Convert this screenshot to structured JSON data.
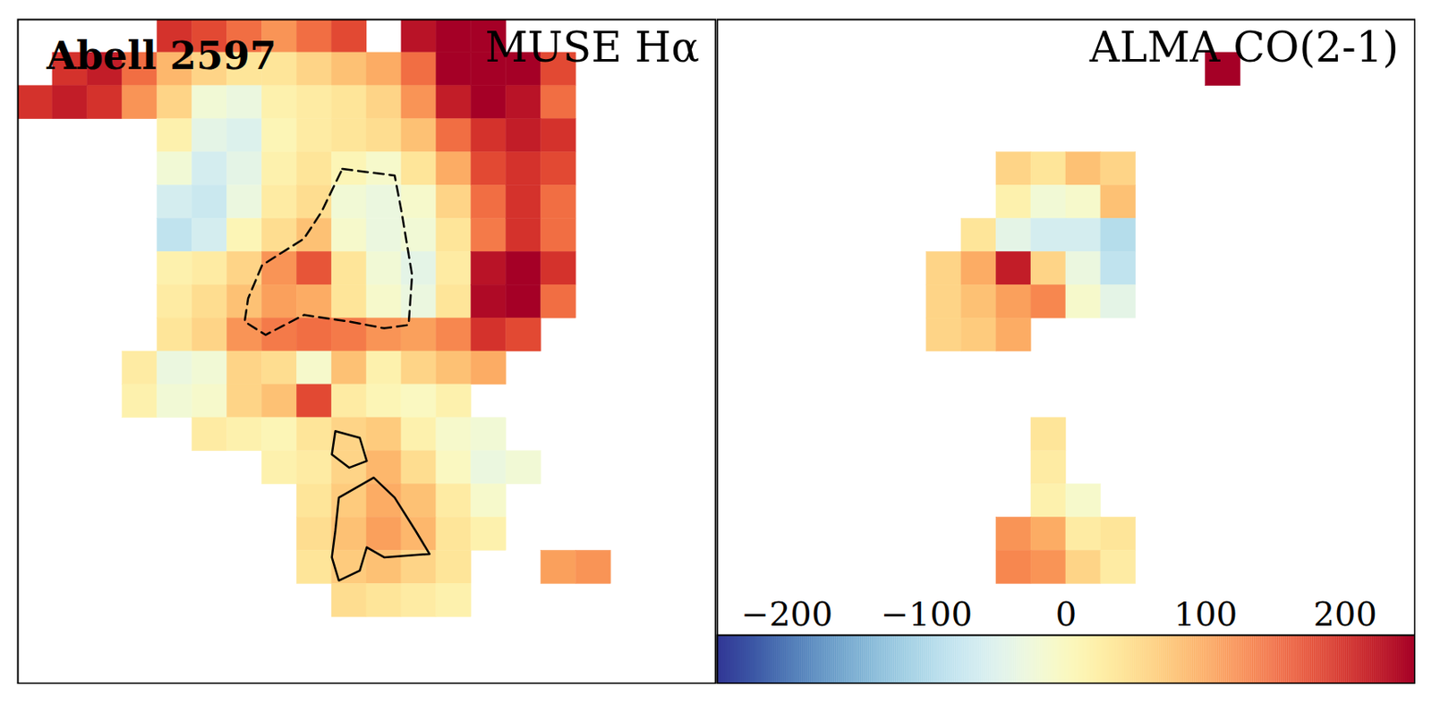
{
  "chart_data": [
    {
      "type": "heatmap",
      "title": "MUSE Hα",
      "annotation": "Abell 2597",
      "tick_labels": false,
      "cells": [
        [
          null,
          null,
          null,
          null,
          200,
          180,
          150,
          120,
          150,
          180,
          null,
          230,
          250,
          250,
          null,
          null,
          null,
          null,
          null,
          null
        ],
        [
          null,
          200,
          220,
          150,
          90,
          60,
          40,
          40,
          60,
          80,
          100,
          150,
          250,
          250,
          250,
          180,
          null,
          null,
          null,
          null
        ],
        [
          200,
          220,
          200,
          120,
          60,
          -20,
          -30,
          20,
          30,
          40,
          60,
          120,
          220,
          250,
          230,
          150,
          null,
          null,
          null,
          null
        ],
        [
          null,
          null,
          null,
          null,
          20,
          -40,
          -50,
          10,
          30,
          40,
          50,
          80,
          150,
          200,
          220,
          200,
          null,
          null,
          null,
          null
        ],
        [
          null,
          null,
          null,
          null,
          -20,
          -60,
          -40,
          20,
          40,
          10,
          -10,
          40,
          100,
          180,
          200,
          180,
          null,
          null,
          null,
          null
        ],
        [
          null,
          null,
          null,
          null,
          -60,
          -70,
          -30,
          30,
          50,
          -20,
          -30,
          -10,
          60,
          150,
          200,
          150,
          null,
          null,
          null,
          null
        ],
        [
          null,
          null,
          null,
          null,
          -80,
          -60,
          10,
          50,
          80,
          -10,
          -30,
          -20,
          40,
          140,
          200,
          150,
          null,
          null,
          null,
          null
        ],
        [
          null,
          null,
          null,
          null,
          20,
          30,
          60,
          120,
          170,
          40,
          -20,
          -40,
          30,
          230,
          250,
          200,
          null,
          null,
          null,
          null
        ],
        [
          null,
          null,
          null,
          null,
          30,
          50,
          80,
          110,
          100,
          40,
          -10,
          -30,
          40,
          240,
          250,
          150,
          null,
          null,
          null,
          null
        ],
        [
          null,
          null,
          null,
          null,
          40,
          60,
          120,
          140,
          150,
          140,
          120,
          110,
          130,
          200,
          180,
          null,
          null,
          null,
          null,
          null
        ],
        [
          null,
          null,
          null,
          30,
          -30,
          -20,
          60,
          50,
          -10,
          80,
          20,
          60,
          80,
          100,
          null,
          null,
          null,
          null,
          null,
          null
        ],
        [
          null,
          null,
          null,
          20,
          -20,
          -10,
          60,
          80,
          180,
          30,
          10,
          0,
          20,
          null,
          null,
          null,
          null,
          null,
          null,
          null
        ],
        [
          null,
          null,
          null,
          null,
          null,
          30,
          20,
          10,
          40,
          60,
          70,
          20,
          -10,
          -20,
          null,
          null,
          null,
          null,
          null,
          null
        ],
        [
          null,
          null,
          null,
          null,
          null,
          null,
          null,
          20,
          30,
          60,
          90,
          50,
          0,
          -30,
          -20,
          null,
          null,
          null,
          null,
          null
        ],
        [
          null,
          null,
          null,
          null,
          null,
          null,
          null,
          null,
          40,
          70,
          100,
          80,
          30,
          -10,
          null,
          null,
          null,
          null,
          null,
          null
        ],
        [
          null,
          null,
          null,
          null,
          null,
          null,
          null,
          null,
          50,
          80,
          110,
          90,
          40,
          20,
          null,
          null,
          null,
          null,
          null,
          null
        ],
        [
          null,
          null,
          null,
          null,
          null,
          null,
          null,
          null,
          40,
          70,
          80,
          60,
          40,
          null,
          null,
          110,
          120,
          null,
          null,
          null
        ],
        [
          null,
          null,
          null,
          null,
          null,
          null,
          null,
          null,
          null,
          50,
          40,
          30,
          20,
          null,
          null,
          null,
          null,
          null,
          null,
          null
        ],
        [
          null,
          null,
          null,
          null,
          null,
          null,
          null,
          null,
          null,
          null,
          null,
          null,
          null,
          null,
          null,
          null,
          null,
          null,
          null,
          null
        ],
        [
          null,
          null,
          null,
          null,
          null,
          null,
          null,
          null,
          null,
          null,
          null,
          null,
          null,
          null,
          null,
          null,
          null,
          null,
          null,
          null
        ]
      ],
      "contours": [
        {
          "line_style": "dashed",
          "points": [
            [
              9.3,
              4.5
            ],
            [
              10.8,
              4.7
            ],
            [
              11.0,
              5.8
            ],
            [
              11.3,
              7.7
            ],
            [
              11.2,
              9.2
            ],
            [
              10.5,
              9.3
            ],
            [
              9.5,
              9.1
            ],
            [
              8.2,
              8.9
            ],
            [
              7.1,
              9.5
            ],
            [
              6.5,
              9.1
            ],
            [
              6.6,
              8.4
            ],
            [
              7.0,
              7.4
            ],
            [
              8.2,
              6.6
            ],
            [
              8.7,
              5.8
            ]
          ]
        },
        {
          "line_style": "solid",
          "points": [
            [
              9.1,
              12.4
            ],
            [
              9.8,
              12.6
            ],
            [
              10.0,
              13.3
            ],
            [
              9.5,
              13.5
            ],
            [
              9.0,
              13.1
            ]
          ]
        },
        {
          "line_style": "solid",
          "points": [
            [
              10.2,
              13.8
            ],
            [
              10.8,
              14.4
            ],
            [
              11.4,
              15.4
            ],
            [
              11.8,
              16.1
            ],
            [
              10.5,
              16.2
            ],
            [
              10.0,
              15.9
            ],
            [
              9.8,
              16.6
            ],
            [
              9.2,
              16.9
            ],
            [
              9.0,
              16.2
            ],
            [
              9.1,
              15.4
            ],
            [
              9.2,
              14.4
            ]
          ]
        }
      ]
    },
    {
      "type": "heatmap",
      "title": "ALMA CO(2-1)",
      "tick_labels": false,
      "cells": [
        [
          null,
          null,
          null,
          null,
          null,
          null,
          null,
          null,
          null,
          null,
          null,
          null,
          null,
          null,
          null,
          null,
          null,
          null,
          null,
          null
        ],
        [
          null,
          null,
          null,
          null,
          null,
          null,
          null,
          null,
          null,
          null,
          null,
          null,
          null,
          null,
          250,
          null,
          null,
          null,
          null,
          null
        ],
        [
          null,
          null,
          null,
          null,
          null,
          null,
          null,
          null,
          null,
          null,
          null,
          null,
          null,
          null,
          null,
          null,
          null,
          null,
          null,
          null
        ],
        [
          null,
          null,
          null,
          null,
          null,
          null,
          null,
          null,
          null,
          null,
          null,
          null,
          null,
          null,
          null,
          null,
          null,
          null,
          null,
          null
        ],
        [
          null,
          null,
          null,
          null,
          null,
          null,
          null,
          null,
          60,
          40,
          80,
          60,
          null,
          null,
          null,
          null,
          null,
          null,
          null,
          null
        ],
        [
          null,
          null,
          null,
          null,
          null,
          null,
          null,
          null,
          20,
          -20,
          -10,
          80,
          null,
          null,
          null,
          null,
          null,
          null,
          null,
          null
        ],
        [
          null,
          null,
          null,
          null,
          null,
          null,
          null,
          40,
          -40,
          -60,
          -60,
          -90,
          null,
          null,
          null,
          null,
          null,
          null,
          null,
          null
        ],
        [
          null,
          null,
          null,
          null,
          null,
          null,
          60,
          100,
          220,
          60,
          -30,
          -80,
          null,
          null,
          null,
          null,
          null,
          null,
          null,
          null
        ],
        [
          null,
          null,
          null,
          null,
          null,
          null,
          60,
          80,
          110,
          130,
          -10,
          -40,
          null,
          null,
          null,
          null,
          null,
          null,
          null,
          null
        ],
        [
          null,
          null,
          null,
          null,
          null,
          null,
          60,
          70,
          100,
          null,
          null,
          null,
          null,
          null,
          null,
          null,
          null,
          null,
          null,
          null
        ],
        [
          null,
          null,
          null,
          null,
          null,
          null,
          null,
          null,
          null,
          null,
          null,
          null,
          null,
          null,
          null,
          null,
          null,
          null,
          null,
          null
        ],
        [
          null,
          null,
          null,
          null,
          null,
          null,
          null,
          null,
          null,
          null,
          null,
          null,
          null,
          null,
          null,
          null,
          null,
          null,
          null,
          null
        ],
        [
          null,
          null,
          null,
          null,
          null,
          null,
          null,
          null,
          null,
          40,
          null,
          null,
          null,
          null,
          null,
          null,
          null,
          null,
          null,
          null
        ],
        [
          null,
          null,
          null,
          null,
          null,
          null,
          null,
          null,
          null,
          30,
          null,
          null,
          null,
          null,
          null,
          null,
          null,
          null,
          null,
          null
        ],
        [
          null,
          null,
          null,
          null,
          null,
          null,
          null,
          null,
          null,
          20,
          -10,
          null,
          null,
          null,
          null,
          null,
          null,
          null,
          null,
          null
        ],
        [
          null,
          null,
          null,
          null,
          null,
          null,
          null,
          null,
          120,
          100,
          30,
          40,
          null,
          null,
          null,
          null,
          null,
          null,
          null,
          null
        ],
        [
          null,
          null,
          null,
          null,
          null,
          null,
          null,
          null,
          130,
          120,
          60,
          30,
          null,
          null,
          null,
          null,
          null,
          null,
          null,
          null
        ],
        [
          null,
          null,
          null,
          null,
          null,
          null,
          null,
          null,
          null,
          null,
          null,
          null,
          null,
          null,
          null,
          null,
          null,
          null,
          null,
          null
        ],
        [
          null,
          null,
          null,
          null,
          null,
          null,
          null,
          null,
          null,
          null,
          null,
          null,
          null,
          null,
          null,
          null,
          null,
          null,
          null,
          null
        ],
        [
          null,
          null,
          null,
          null,
          null,
          null,
          null,
          null,
          null,
          null,
          null,
          null,
          null,
          null,
          null,
          null,
          null,
          null,
          null,
          null
        ]
      ],
      "colorbar": {
        "range": [
          -250,
          250
        ],
        "ticks": [
          {
            "value": -200,
            "label": "−200"
          },
          {
            "value": -100,
            "label": "−100"
          },
          0,
          100,
          200
        ]
      }
    }
  ]
}
